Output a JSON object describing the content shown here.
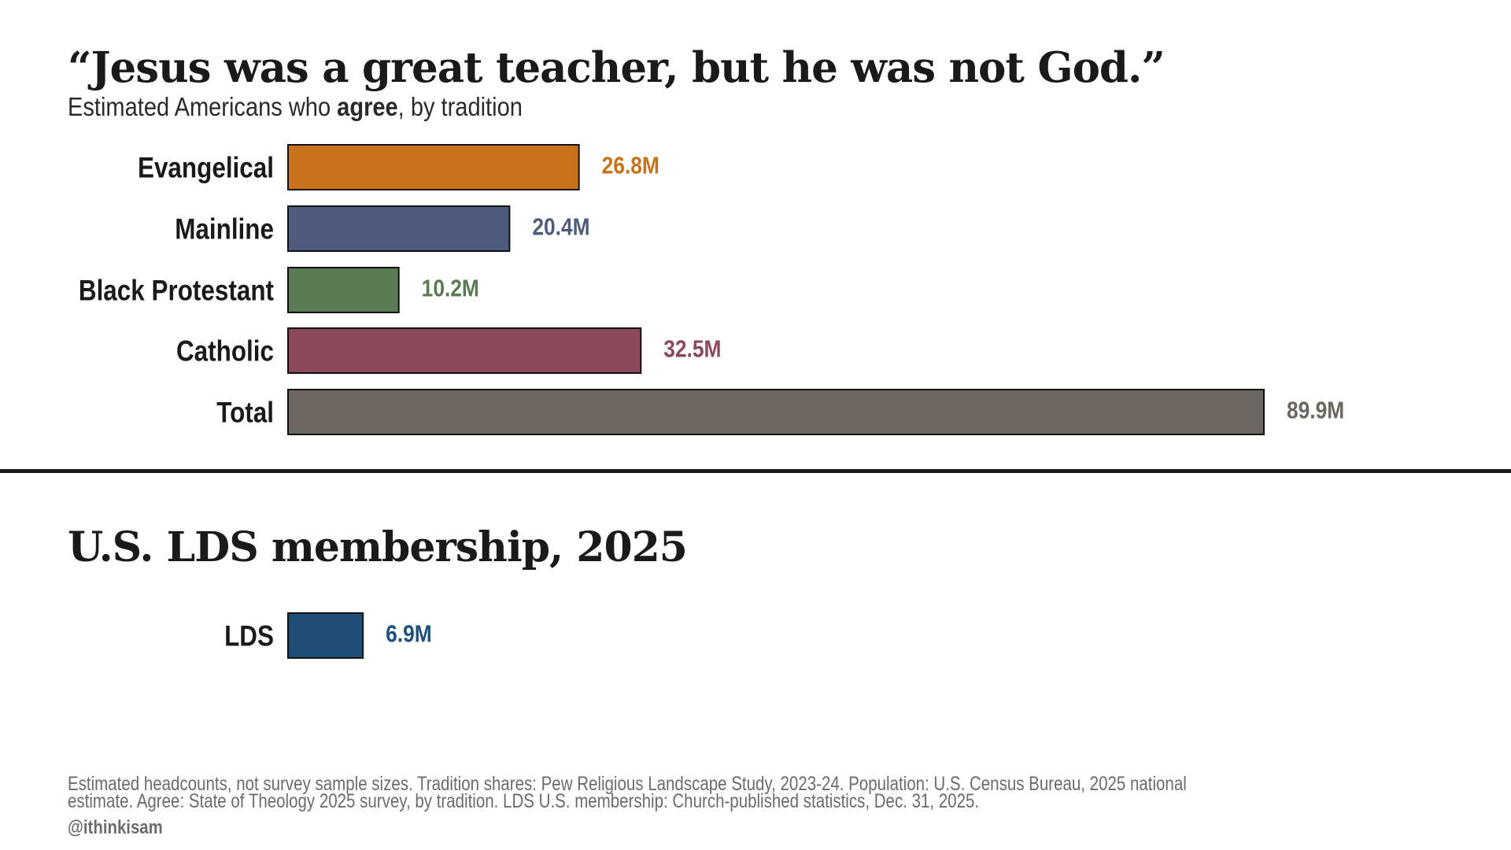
{
  "title": "“Jesus was a great teacher, but he was not God.”",
  "subtitle": {
    "pre": "Estimated Americans who ",
    "bold": "agree",
    "post": ", by tradition"
  },
  "section_title": "U.S. LDS membership, 2025",
  "footnote": {
    "line1": "Estimated headcounts, not survey sample sizes. Tradition shares: Pew Religious Landscape Study, 2023-24. Population: U.S. Census Bureau, 2025 national",
    "line2": "estimate. Agree: State of Theology 2025 survey, by tradition. LDS U.S. membership: Church-published statistics, Dec. 31, 2025."
  },
  "handle": "@ithinkisam",
  "chart_data": [
    {
      "type": "bar",
      "orientation": "horizontal",
      "title": "“Jesus was a great teacher, but he was not God.”",
      "subtitle": "Estimated Americans who agree, by tradition",
      "unit": "M",
      "categories": [
        "Evangelical",
        "Mainline",
        "Black Protestant",
        "Catholic",
        "Total"
      ],
      "values": [
        26.8,
        20.4,
        10.2,
        32.5,
        89.9
      ],
      "value_labels": [
        "26.8M",
        "20.4M",
        "10.2M",
        "32.5M",
        "89.9M"
      ],
      "colors": [
        "#c8711b",
        "#4e5b7c",
        "#5a7a52",
        "#8b4a5c",
        "#6b6660"
      ],
      "xlim": [
        0,
        89.9
      ],
      "grid": false,
      "legend": "none"
    },
    {
      "type": "bar",
      "orientation": "horizontal",
      "title": "U.S. LDS membership, 2025",
      "unit": "M",
      "categories": [
        "LDS"
      ],
      "values": [
        6.9
      ],
      "value_labels": [
        "6.9M"
      ],
      "colors": [
        "#1f4e79"
      ],
      "xlim": [
        0,
        89.9
      ],
      "grid": false,
      "legend": "none"
    }
  ]
}
